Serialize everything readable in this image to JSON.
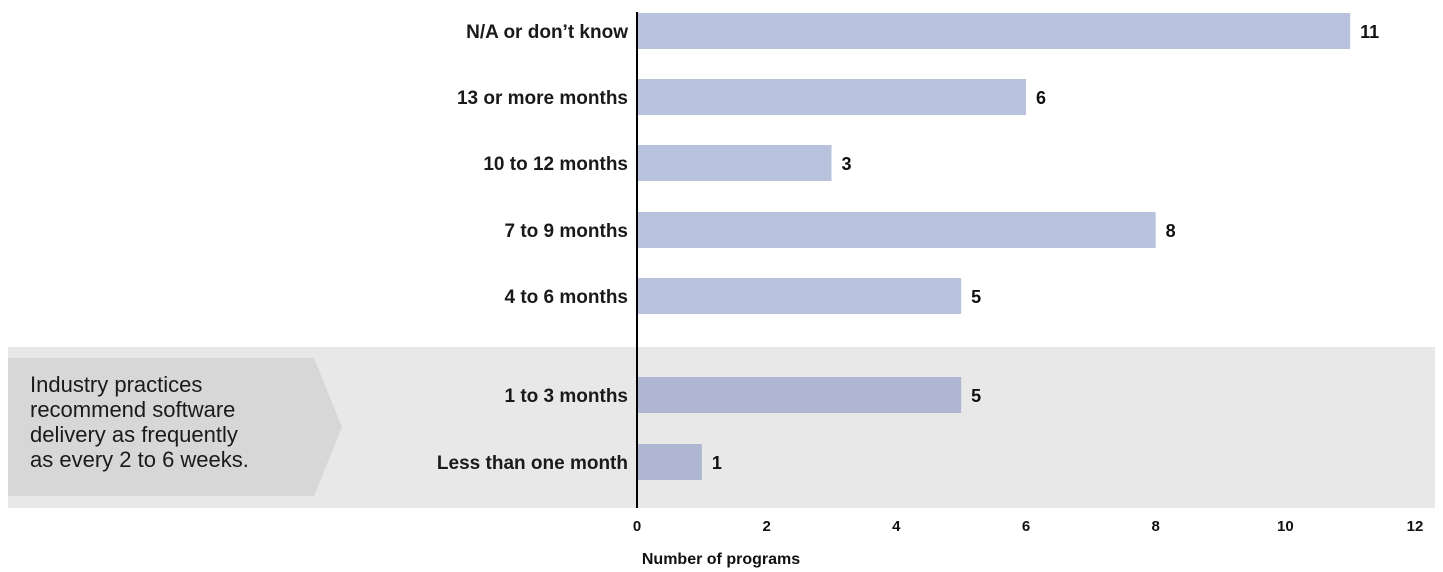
{
  "chart_data": {
    "type": "bar",
    "orientation": "horizontal",
    "categories": [
      "N/A or don’t know",
      "13 or more months",
      "10 to 12 months",
      "7 to 9 months",
      "4 to 6 months",
      "1 to 3 months",
      "Less than one month"
    ],
    "values": [
      11,
      6,
      3,
      8,
      5,
      5,
      1
    ],
    "xlabel": "Number of programs",
    "ylabel": "",
    "xlim": [
      0,
      12
    ],
    "xticks": [
      "0",
      "2",
      "4",
      "6",
      "8",
      "10",
      "12"
    ],
    "grid": false,
    "legend": "none",
    "highlighted_categories": [
      "1 to 3 months",
      "Less than one month"
    ],
    "annotation": {
      "lines": [
        "Industry practices",
        "recommend software",
        "delivery as frequently",
        "as every 2 to 6 weeks."
      ]
    },
    "colors": {
      "bar": "#b8c2dd",
      "bar_highlight": "#aeb6d2",
      "highlight_band": "#e8e8e8",
      "callout": "#d7d7d7",
      "axis": "#000000"
    }
  }
}
